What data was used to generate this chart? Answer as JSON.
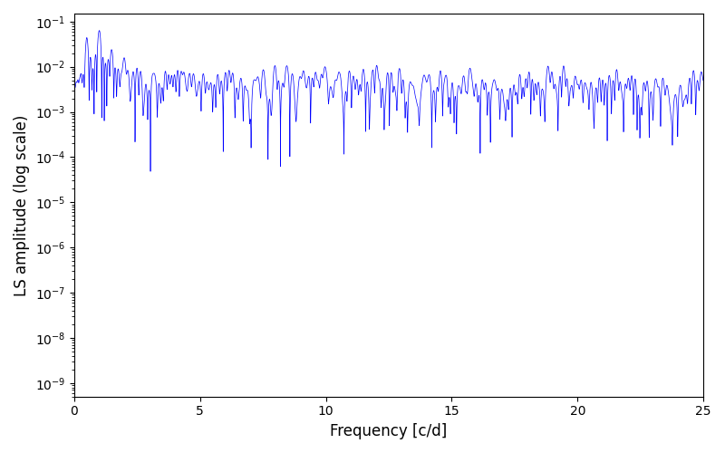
{
  "xlabel": "Frequency [c/d]",
  "ylabel": "LS amplitude (log scale)",
  "xlim": [
    0,
    25
  ],
  "ylim": [
    5e-10,
    0.15
  ],
  "line_color": "blue",
  "figsize": [
    8.0,
    5.0
  ],
  "dpi": 100,
  "freq_max": 25.0,
  "n_points": 10000,
  "seed": 7
}
